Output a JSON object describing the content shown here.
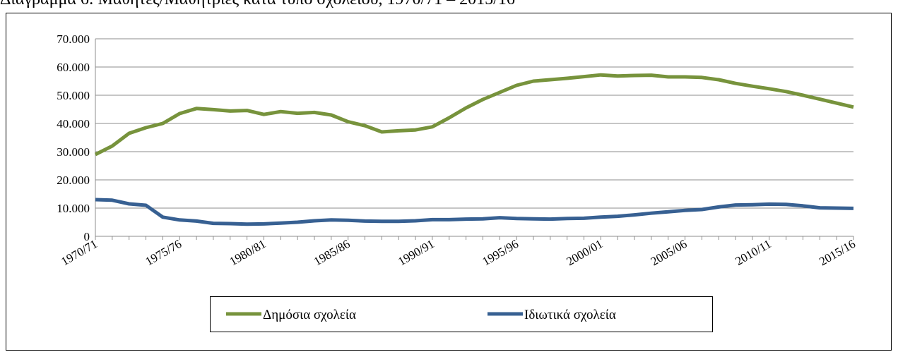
{
  "chart_data": {
    "type": "line",
    "title": "Διάγραμμα 6: Μαθητές/Μαθήτριες κατά τύπο σχολείου, 1970/71 – 2015/16",
    "categories": [
      "1970/71",
      null,
      null,
      null,
      null,
      "1975/76",
      null,
      null,
      null,
      null,
      "1980/81",
      null,
      null,
      null,
      null,
      "1985/86",
      null,
      null,
      null,
      null,
      "1990/91",
      null,
      null,
      null,
      null,
      "1995/96",
      null,
      null,
      null,
      null,
      "2000/01",
      null,
      null,
      null,
      null,
      "2005/06",
      null,
      null,
      null,
      null,
      "2010/11",
      null,
      null,
      null,
      null,
      "2015/16"
    ],
    "series": [
      {
        "name": "Δημόσια σχολεία",
        "color": "#77933c",
        "values": [
          29000,
          32000,
          36500,
          38500,
          40000,
          43500,
          45300,
          44900,
          44400,
          44600,
          43200,
          44200,
          43600,
          43900,
          43000,
          40600,
          39200,
          37000,
          37400,
          37700,
          38800,
          42000,
          45500,
          48500,
          51000,
          53500,
          55000,
          55500,
          56000,
          56600,
          57200,
          56800,
          57000,
          57100,
          56500,
          56500,
          56300,
          55500,
          54200,
          53200,
          52300,
          51300,
          50000,
          48600,
          47200,
          45800
        ]
      },
      {
        "name": "Ιδιωτικά σχολεία",
        "color": "#376092",
        "values": [
          13000,
          12800,
          11500,
          11000,
          6800,
          5800,
          5400,
          4600,
          4500,
          4300,
          4400,
          4700,
          5000,
          5500,
          5800,
          5700,
          5400,
          5300,
          5300,
          5500,
          5900,
          5900,
          6100,
          6200,
          6600,
          6300,
          6200,
          6100,
          6300,
          6400,
          6800,
          7100,
          7600,
          8200,
          8700,
          9200,
          9500,
          10400,
          11100,
          11200,
          11400,
          11300,
          10800,
          10100,
          10000,
          9900
        ]
      }
    ],
    "ylim": [
      0,
      70000
    ],
    "yticks": [
      0,
      {
        "value": 10000,
        "label": "10.000"
      },
      {
        "value": 20000,
        "label": "20.000"
      },
      {
        "value": 30000,
        "label": "30.000"
      },
      {
        "value": 40000,
        "label": "40.000"
      },
      {
        "value": 50000,
        "label": "50.000"
      },
      {
        "value": 60000,
        "label": "60.000"
      },
      {
        "value": 70000,
        "label": "70.000"
      }
    ],
    "grid": true,
    "legend": "bottom"
  }
}
